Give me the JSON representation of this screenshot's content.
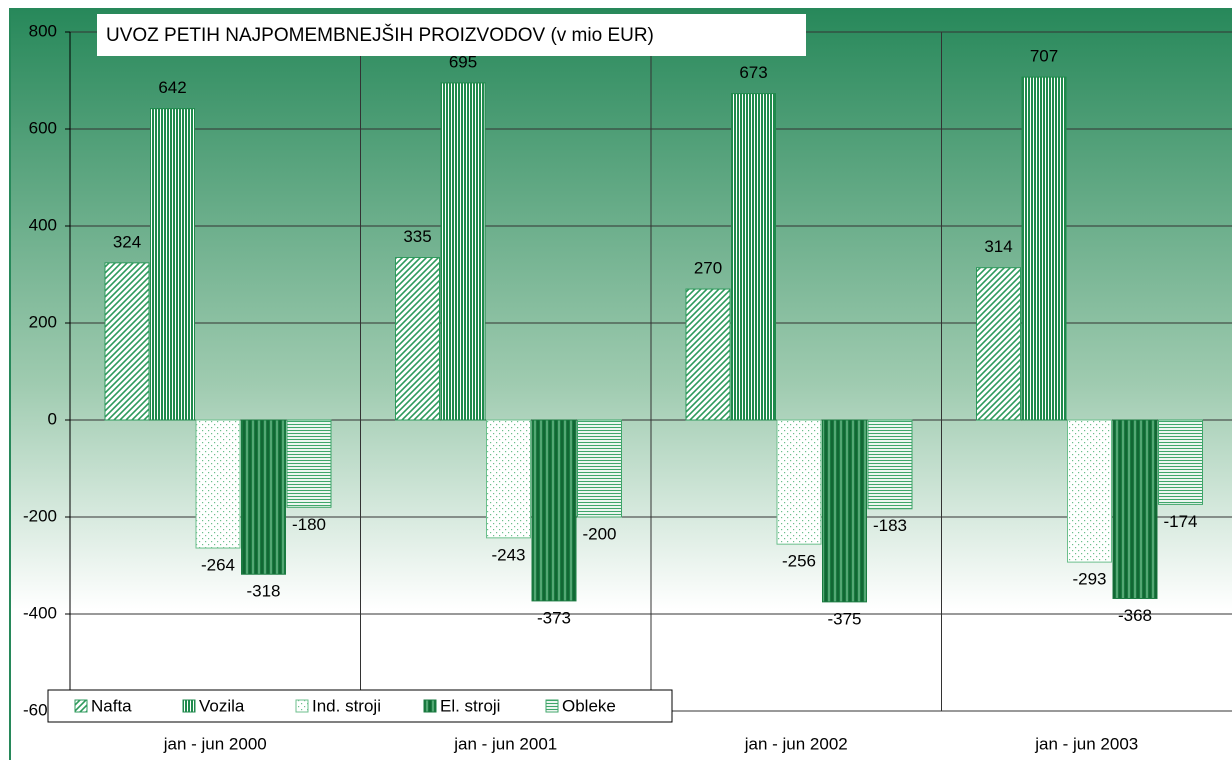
{
  "chart_data": {
    "type": "bar",
    "title": "UVOZ PETIH NAJPOMEMBNEJŠIH PROIZVODOV (v mio EUR)",
    "categories": [
      "jan - jun 2000",
      "jan - jun 2001",
      "jan - jun 2002",
      "jan - jun 2003"
    ],
    "series": [
      {
        "name": "Nafta",
        "color": "#2e9a5c",
        "values": [
          324,
          335,
          270,
          314
        ]
      },
      {
        "name": "Vozila",
        "color": "#1f8a4c",
        "values": [
          642,
          695,
          673,
          707
        ]
      },
      {
        "name": "Ind. stroji",
        "color": "#6cbf8c",
        "values": [
          -264,
          -243,
          -256,
          -293
        ]
      },
      {
        "name": "El. stroji",
        "color": "#1a7a40",
        "values": [
          -318,
          -373,
          -375,
          -368
        ]
      },
      {
        "name": "Obleke",
        "color": "#3fa66a",
        "values": [
          -180,
          -200,
          -183,
          -174
        ]
      }
    ],
    "ylim": [
      -600,
      800
    ],
    "yticks": [
      -600,
      -400,
      -200,
      0,
      200,
      400,
      600,
      800
    ],
    "grid": true,
    "legend": "bottom-left"
  }
}
